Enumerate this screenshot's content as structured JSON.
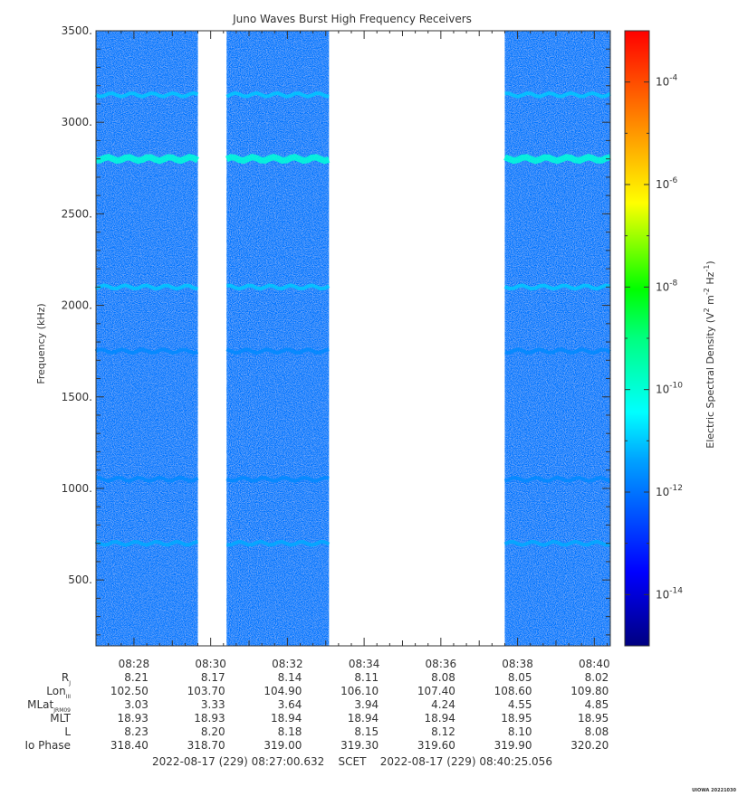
{
  "chart_data": {
    "type": "heatmap",
    "title": "Juno Waves Burst High Frequency Receivers",
    "ylabel": "Frequency (kHz)",
    "ylim": [
      140,
      3500
    ],
    "y_ticks": [
      500,
      1000,
      1500,
      2000,
      2500,
      3000,
      3500
    ],
    "y_tick_labels": [
      "500.",
      "1000.",
      "1500.",
      "2000.",
      "2500.",
      "3000.",
      "3500."
    ],
    "x_tick_labels": [
      "08:28",
      "08:30",
      "08:32",
      "08:34",
      "08:36",
      "08:38",
      "08:40"
    ],
    "time_range": [
      "08:27:00.632",
      "08:40:25.056"
    ],
    "data_segments": [
      {
        "start": "08:27:00",
        "end": "08:29:40"
      },
      {
        "start": "08:30:25",
        "end": "08:33:05"
      },
      {
        "start": "08:37:40",
        "end": "08:40:25"
      }
    ],
    "background_level": "1e-12",
    "emission_bands": [
      {
        "freq_khz": 3150,
        "level": "1e-11"
      },
      {
        "freq_khz": 2800,
        "level": "1e-10"
      },
      {
        "freq_khz": 2100,
        "level": "1e-11"
      },
      {
        "freq_khz": 1750,
        "level": "2e-12"
      },
      {
        "freq_khz": 1050,
        "level": "2e-12"
      },
      {
        "freq_khz": 700,
        "level": "5e-12"
      }
    ],
    "colorbar": {
      "label": "Electric Spectral Density (V",
      "label_sup1": "2",
      "label_mid": " m",
      "label_sup2": "-2",
      "label_mid2": " Hz",
      "label_sup3": "-1",
      "label_end": ")",
      "range": [
        "1e-15",
        "1e-3"
      ],
      "ticks": [
        {
          "base": "10",
          "exp": "-4",
          "value": -4
        },
        {
          "base": "10",
          "exp": "-6",
          "value": -6
        },
        {
          "base": "10",
          "exp": "-8",
          "value": -8
        },
        {
          "base": "10",
          "exp": "-10",
          "value": -10
        },
        {
          "base": "10",
          "exp": "-12",
          "value": -12
        },
        {
          "base": "10",
          "exp": "-14",
          "value": -14
        }
      ]
    },
    "ephemeris": {
      "rows": [
        {
          "label": "R",
          "sub": "J",
          "values": [
            "8.21",
            "8.17",
            "8.14",
            "8.11",
            "8.08",
            "8.05",
            "8.02"
          ]
        },
        {
          "label": "Lon",
          "sub": "III",
          "values": [
            "102.50",
            "103.70",
            "104.90",
            "106.10",
            "107.40",
            "108.60",
            "109.80"
          ]
        },
        {
          "label": "MLat",
          "sub": "JRM09",
          "values": [
            "3.03",
            "3.33",
            "3.64",
            "3.94",
            "4.24",
            "4.55",
            "4.85"
          ]
        },
        {
          "label": "MLT",
          "sub": "",
          "values": [
            "18.93",
            "18.93",
            "18.94",
            "18.94",
            "18.94",
            "18.95",
            "18.95"
          ]
        },
        {
          "label": "L",
          "sub": "",
          "values": [
            "8.23",
            "8.20",
            "8.18",
            "8.15",
            "8.12",
            "8.10",
            "8.08"
          ]
        },
        {
          "label": "Io Phase",
          "sub": "",
          "values": [
            "318.40",
            "318.70",
            "319.00",
            "319.30",
            "319.60",
            "319.90",
            "320.20"
          ]
        }
      ]
    },
    "footer_time": "2022-08-17 (229) 08:27:00.632    SCET    2022-08-17 (229) 08:40:25.056",
    "stamp": "UIOWA 20221030"
  }
}
